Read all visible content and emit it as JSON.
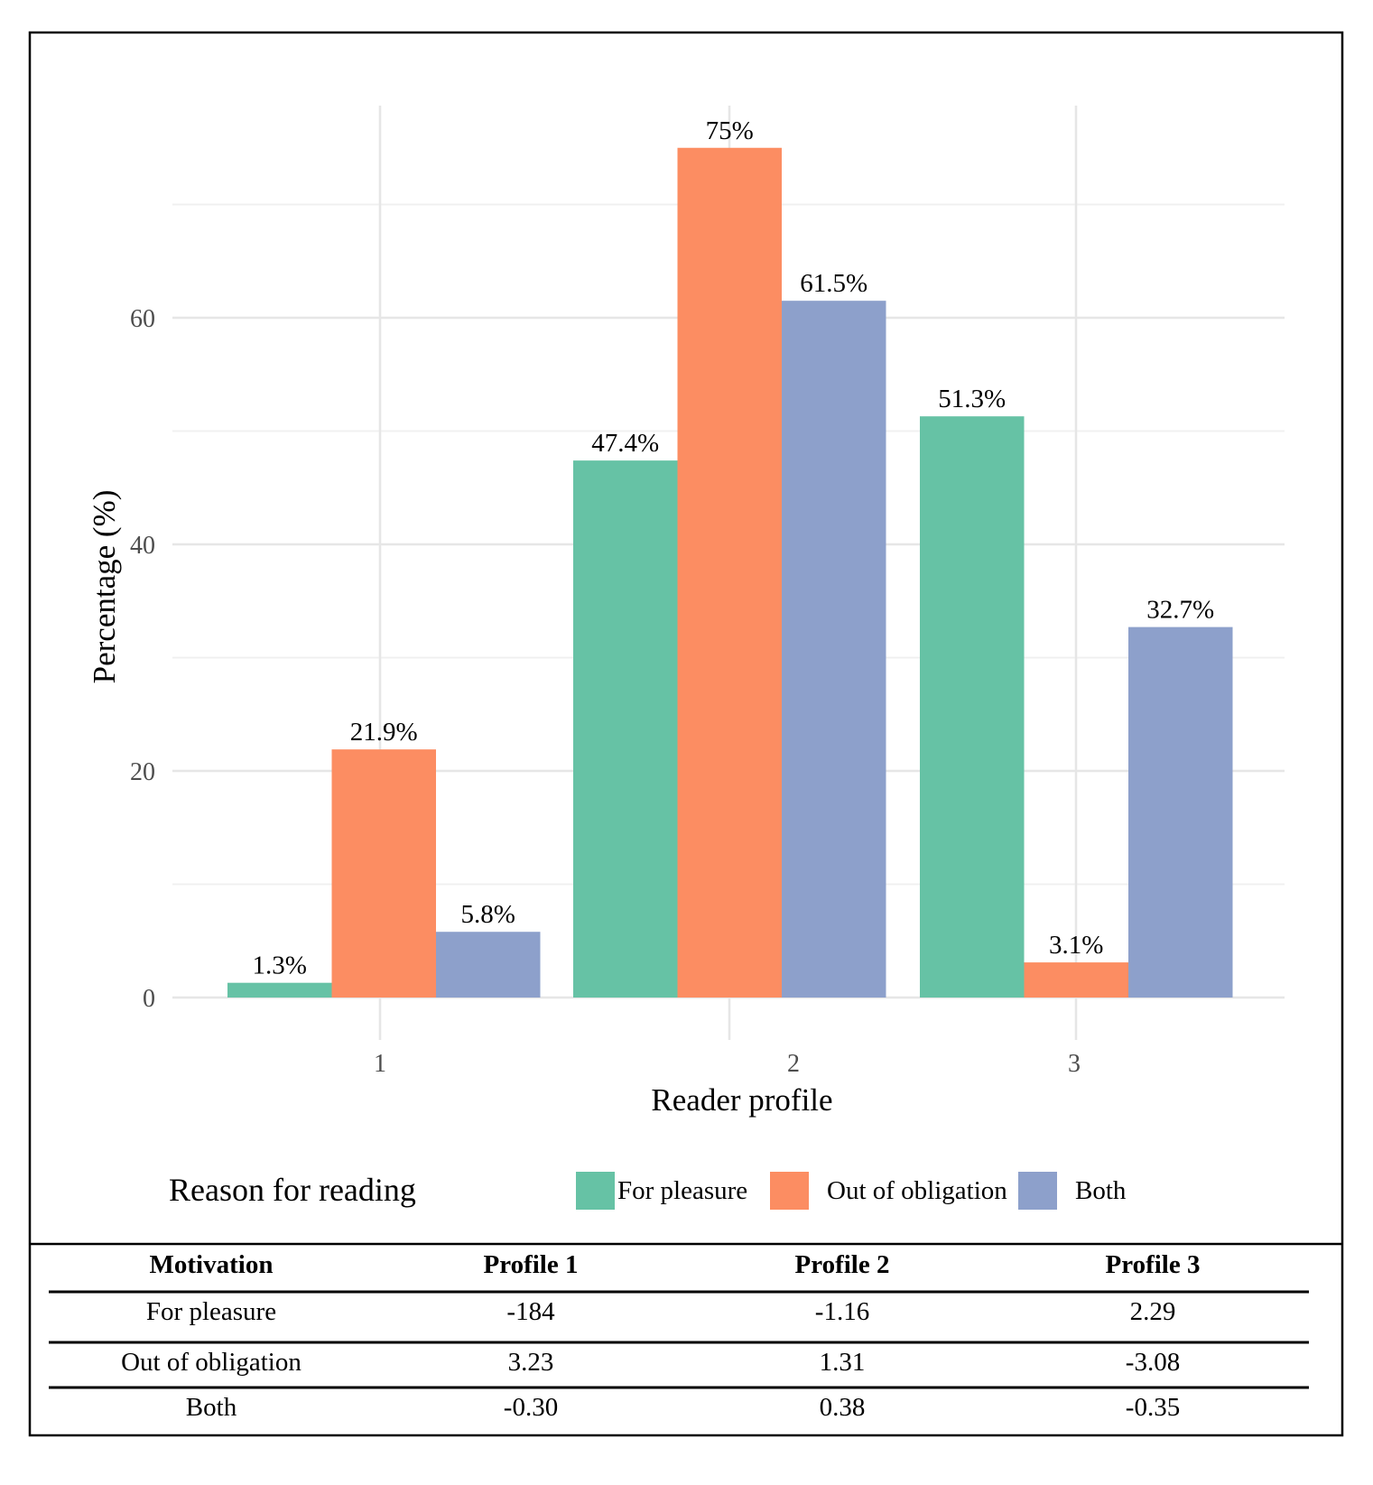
{
  "chart_data": {
    "type": "bar",
    "xlabel": "Reader profile",
    "ylabel": "Percentage (%)",
    "categories": [
      "1",
      "2",
      "3"
    ],
    "ylim": [
      0,
      78
    ],
    "yticks": [
      0,
      20,
      40,
      60
    ],
    "grid": true,
    "legend_title": "Reason for reading",
    "legend_position": "bottom",
    "series": [
      {
        "name": "For pleasure",
        "color": "#66c2a5",
        "values": [
          1.3,
          47.4,
          51.3
        ],
        "labels": [
          "1.3%",
          "47.4%",
          "51.3%"
        ]
      },
      {
        "name": "Out of obligation",
        "color": "#fc8d62",
        "values": [
          21.9,
          75,
          3.1
        ],
        "labels": [
          "21.9%",
          "75%",
          "3.1%"
        ]
      },
      {
        "name": "Both",
        "color": "#8da0cb",
        "values": [
          5.8,
          61.5,
          32.7
        ],
        "labels": [
          "5.8%",
          "61.5%",
          "32.7%"
        ]
      }
    ]
  },
  "table": {
    "headers": [
      "Motivation",
      "Profile 1",
      "Profile 2",
      "Profile 3"
    ],
    "rows": [
      [
        "For pleasure",
        "-184",
        "-1.16",
        "2.29"
      ],
      [
        "Out of obligation",
        "3.23",
        "1.31",
        "-3.08"
      ],
      [
        "Both",
        "-0.30",
        "0.38",
        "-0.35"
      ]
    ]
  }
}
